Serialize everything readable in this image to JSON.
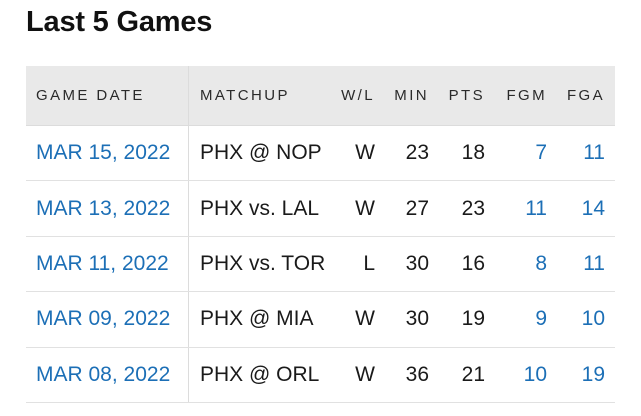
{
  "title": "Last 5 Games",
  "columns": {
    "date": "GAME DATE",
    "matchup": "MATCHUP",
    "wl": "W/L",
    "min": "MIN",
    "pts": "PTS",
    "fgm": "FGM",
    "fga": "FGA"
  },
  "rows": [
    {
      "date": "MAR 15, 2022",
      "matchup": "PHX @ NOP",
      "wl": "W",
      "min": "23",
      "pts": "18",
      "fgm": "7",
      "fga": "11"
    },
    {
      "date": "MAR 13, 2022",
      "matchup": "PHX vs. LAL",
      "wl": "W",
      "min": "27",
      "pts": "23",
      "fgm": "11",
      "fga": "14"
    },
    {
      "date": "MAR 11, 2022",
      "matchup": "PHX vs. TOR",
      "wl": "L",
      "min": "30",
      "pts": "16",
      "fgm": "8",
      "fga": "11"
    },
    {
      "date": "MAR 09, 2022",
      "matchup": "PHX @ MIA",
      "wl": "W",
      "min": "30",
      "pts": "19",
      "fgm": "9",
      "fga": "10"
    },
    {
      "date": "MAR 08, 2022",
      "matchup": "PHX @ ORL",
      "wl": "W",
      "min": "36",
      "pts": "21",
      "fgm": "10",
      "fga": "19"
    }
  ],
  "colors": {
    "link": "#1c6fb6",
    "header_bg": "#e9e9e9"
  }
}
